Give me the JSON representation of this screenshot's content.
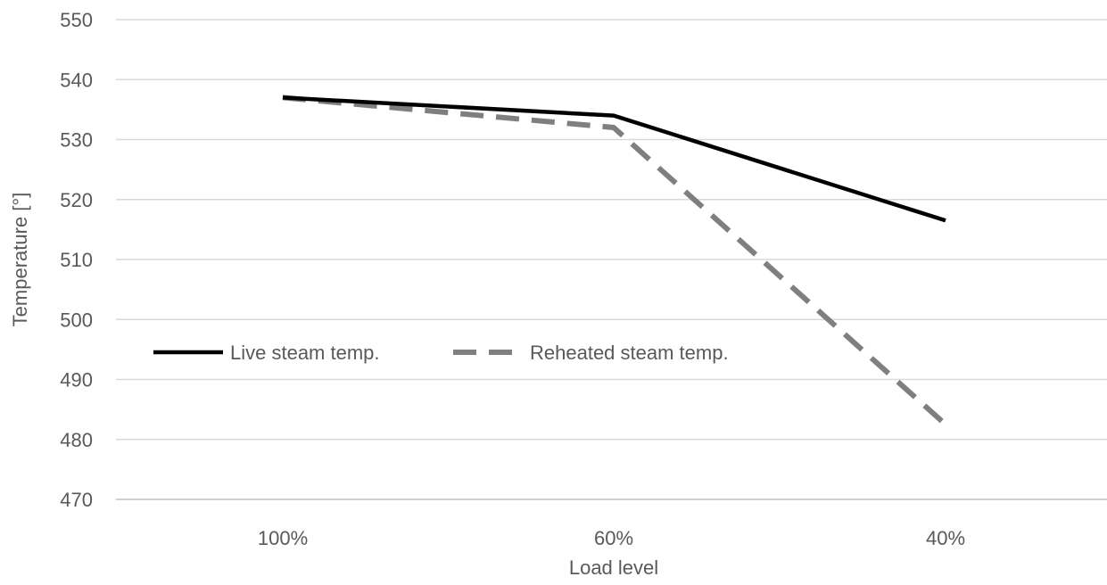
{
  "chart_data": {
    "type": "line",
    "title": "",
    "xlabel": "Load level",
    "ylabel": "Temperature [°]",
    "categories": [
      "100%",
      "60%",
      "40%"
    ],
    "ylim": [
      470,
      550
    ],
    "yticks": [
      470,
      480,
      490,
      500,
      510,
      520,
      530,
      540,
      550
    ],
    "grid": "horizontal",
    "legend_position": "inside-left",
    "series": [
      {
        "name": "Live steam temp.",
        "values": [
          537,
          534,
          516.5
        ],
        "color": "#000000",
        "style": "solid"
      },
      {
        "name": "Reheated steam temp.",
        "values": [
          537,
          532,
          482.5
        ],
        "color": "#7f7f7f",
        "style": "dashed"
      }
    ]
  }
}
